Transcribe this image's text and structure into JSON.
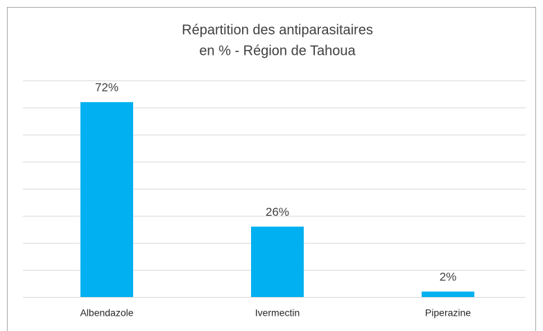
{
  "chart_data": {
    "type": "bar",
    "title": [
      "Répartition des antiparasitaires",
      "en % - Région de Tahoua"
    ],
    "categories": [
      "Albendazole",
      "Ivermectin",
      "Piperazine"
    ],
    "values": [
      72,
      26,
      2
    ],
    "value_labels": [
      "72%",
      "26%",
      "2%"
    ],
    "color": "#00b0f0",
    "ylim": [
      0,
      80
    ],
    "yticks": [
      0,
      10,
      20,
      30,
      40,
      50,
      60,
      70,
      80
    ],
    "grid": true
  }
}
